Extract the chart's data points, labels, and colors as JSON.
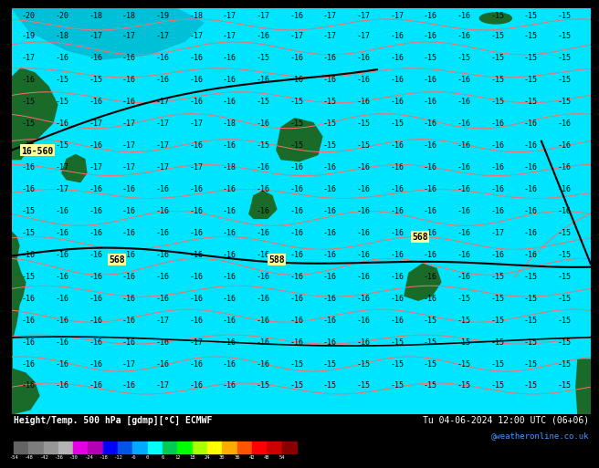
{
  "title_left": "Height/Temp. 500 hPa [gdmp][°C] ECMWF",
  "title_right": "Tu 04-06-2024 12:00 UTC (06+06)",
  "title_right2": "@weatheronline.co.uk",
  "bg_color": "#00e5ff",
  "bg_color_dark": "#00bcd4",
  "land_color_dark": "#1a6b2a",
  "land_color_light": "#2d8a3e",
  "contour_color": "#ff6b6b",
  "geo_line_color": "#000000",
  "label_color": "#000000",
  "geo_label_bg": "#ffff99",
  "colorbar_colors": [
    "#646464",
    "#7d7d7d",
    "#969696",
    "#b4b4b4",
    "#e600e6",
    "#b300b3",
    "#0000ff",
    "#0055e6",
    "#00aaff",
    "#00ffff",
    "#00cc55",
    "#00ff00",
    "#aaff00",
    "#ffff00",
    "#ffaa00",
    "#ff5500",
    "#ff0000",
    "#cc0000",
    "#880000"
  ],
  "colorbar_labels": [
    "-54",
    "-48",
    "-42",
    "-36",
    "-30",
    "-24",
    "-18",
    "-12",
    "-6",
    "0",
    "6",
    "12",
    "18",
    "24",
    "30",
    "36",
    "42",
    "48",
    "54"
  ]
}
